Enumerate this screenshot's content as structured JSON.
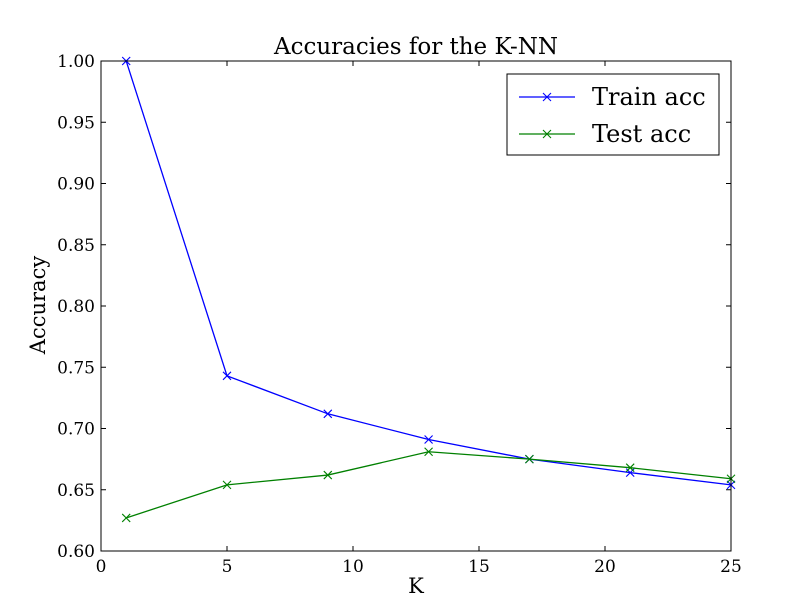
{
  "chart_data": {
    "type": "line",
    "title": "Accuracies for the K-NN",
    "xlabel": "K",
    "ylabel": "Accuracy",
    "xlim": [
      0,
      25
    ],
    "ylim": [
      0.6,
      1.0
    ],
    "xticks": [
      0,
      5,
      10,
      15,
      20,
      25
    ],
    "xtick_labels": [
      "0",
      "5",
      "10",
      "15",
      "20",
      "25"
    ],
    "yticks": [
      0.6,
      0.65,
      0.7,
      0.75,
      0.8,
      0.85,
      0.9,
      0.95,
      1.0
    ],
    "ytick_labels": [
      "0.60",
      "0.65",
      "0.70",
      "0.75",
      "0.80",
      "0.85",
      "0.90",
      "0.95",
      "1.00"
    ],
    "grid": false,
    "legend_position": "top-right",
    "x": [
      1,
      5,
      9,
      13,
      17,
      21,
      25
    ],
    "series": [
      {
        "name": "Train acc",
        "color": "#0000ff",
        "marker": "x",
        "values": [
          1.0,
          0.743,
          0.712,
          0.691,
          0.675,
          0.664,
          0.654
        ]
      },
      {
        "name": "Test acc",
        "color": "#008000",
        "marker": "x",
        "values": [
          0.627,
          0.654,
          0.662,
          0.681,
          0.675,
          0.668,
          0.659
        ]
      }
    ]
  }
}
